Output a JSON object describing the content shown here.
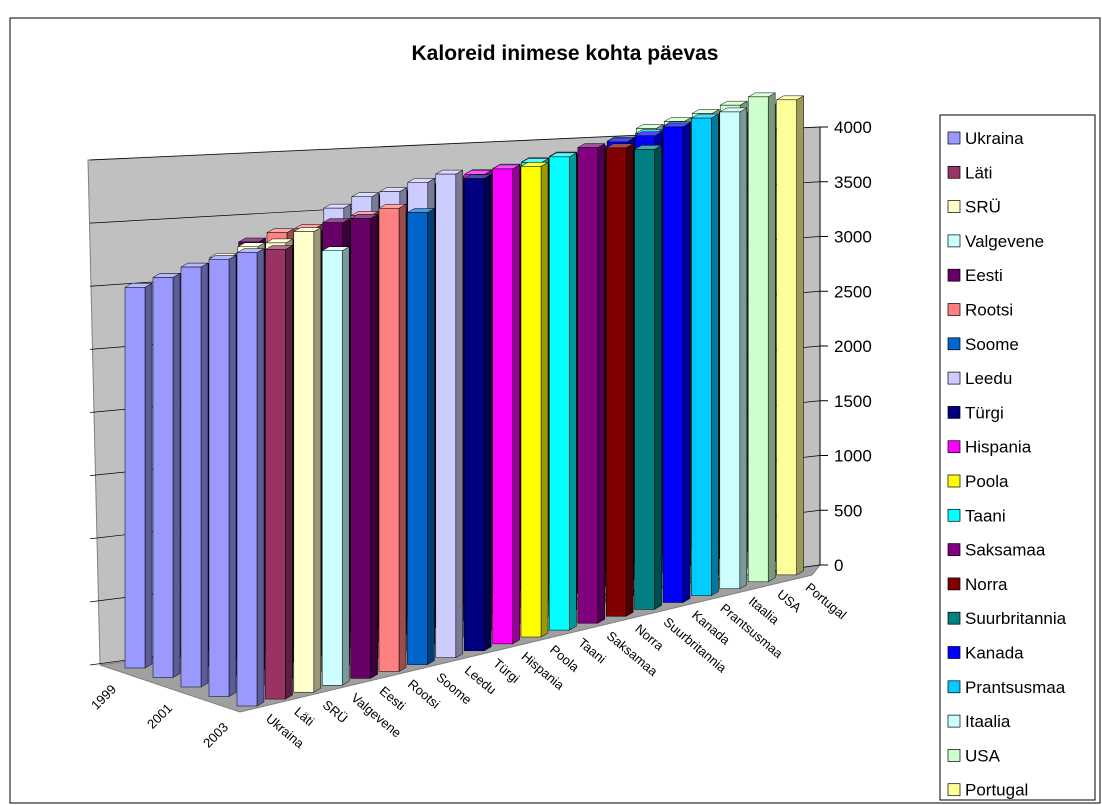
{
  "chart_data": {
    "type": "bar3d",
    "title": "Kaloreid inimese kohta päevas",
    "categories": [
      "1999",
      null,
      "2001",
      null,
      "2003"
    ],
    "ylim": [
      0,
      4000
    ],
    "yticks": [
      0,
      500,
      1000,
      1500,
      2000,
      2500,
      3000,
      3500,
      4000
    ],
    "grid": true,
    "legend": "right",
    "series": [
      {
        "name": "Ukraina",
        "color": "#9999ff",
        "values": [
          2850,
          2900,
          2950,
          2980,
          3000
        ]
      },
      {
        "name": "Läti",
        "color": "#993366",
        "values": [
          2900,
          2950,
          2980,
          3000,
          3000
        ]
      },
      {
        "name": "SRÜ",
        "color": "#ffffcc",
        "values": [
          2950,
          3000,
          3050,
          3050,
          3100
        ]
      },
      {
        "name": "Valgevene",
        "color": "#ccffff",
        "values": [
          3000,
          2950,
          2980,
          3000,
          2950
        ]
      },
      {
        "name": "Eesti",
        "color": "#660066",
        "values": [
          3100,
          3050,
          3100,
          3150,
          3150
        ]
      },
      {
        "name": "Rootsi",
        "color": "#ff8080",
        "values": [
          3150,
          3150,
          3150,
          3180,
          3200
        ]
      },
      {
        "name": "Soome",
        "color": "#0066cc",
        "values": [
          3100,
          3150,
          3150,
          3150,
          3150
        ]
      },
      {
        "name": "Leedu",
        "color": "#ccccff",
        "values": [
          3300,
          3350,
          3350,
          3380,
          3400
        ]
      },
      {
        "name": "Türgi",
        "color": "#000080",
        "values": [
          3350,
          3350,
          3350,
          3350,
          3350
        ]
      },
      {
        "name": "Hispania",
        "color": "#ff00ff",
        "values": [
          3350,
          3380,
          3400,
          3400,
          3400
        ]
      },
      {
        "name": "Poola",
        "color": "#ffff00",
        "values": [
          3400,
          3400,
          3380,
          3380,
          3400
        ]
      },
      {
        "name": "Taani",
        "color": "#00ffff",
        "values": [
          3400,
          3450,
          3450,
          3450,
          3450
        ]
      },
      {
        "name": "Saksamaa",
        "color": "#800080",
        "values": [
          3450,
          3450,
          3480,
          3480,
          3500
        ]
      },
      {
        "name": "Norra",
        "color": "#800000",
        "values": [
          3450,
          3450,
          3480,
          3480,
          3480
        ]
      },
      {
        "name": "Suurbritannia",
        "color": "#008080",
        "values": [
          3400,
          3420,
          3430,
          3440,
          3450
        ]
      },
      {
        "name": "Kanada",
        "color": "#0000ff",
        "values": [
          3550,
          3550,
          3580,
          3580,
          3600
        ]
      },
      {
        "name": "Prantsusmaa",
        "color": "#00ccff",
        "values": [
          3600,
          3620,
          3630,
          3640,
          3650
        ]
      },
      {
        "name": "Itaalia",
        "color": "#ccffff",
        "values": [
          3650,
          3650,
          3670,
          3670,
          3680
        ]
      },
      {
        "name": "USA",
        "color": "#ccffcc",
        "values": [
          3750,
          3750,
          3760,
          3770,
          3780
        ]
      },
      {
        "name": "Portugal",
        "color": "#ffff99",
        "values": [
          3700,
          3720,
          3720,
          3730,
          3740
        ]
      }
    ]
  }
}
